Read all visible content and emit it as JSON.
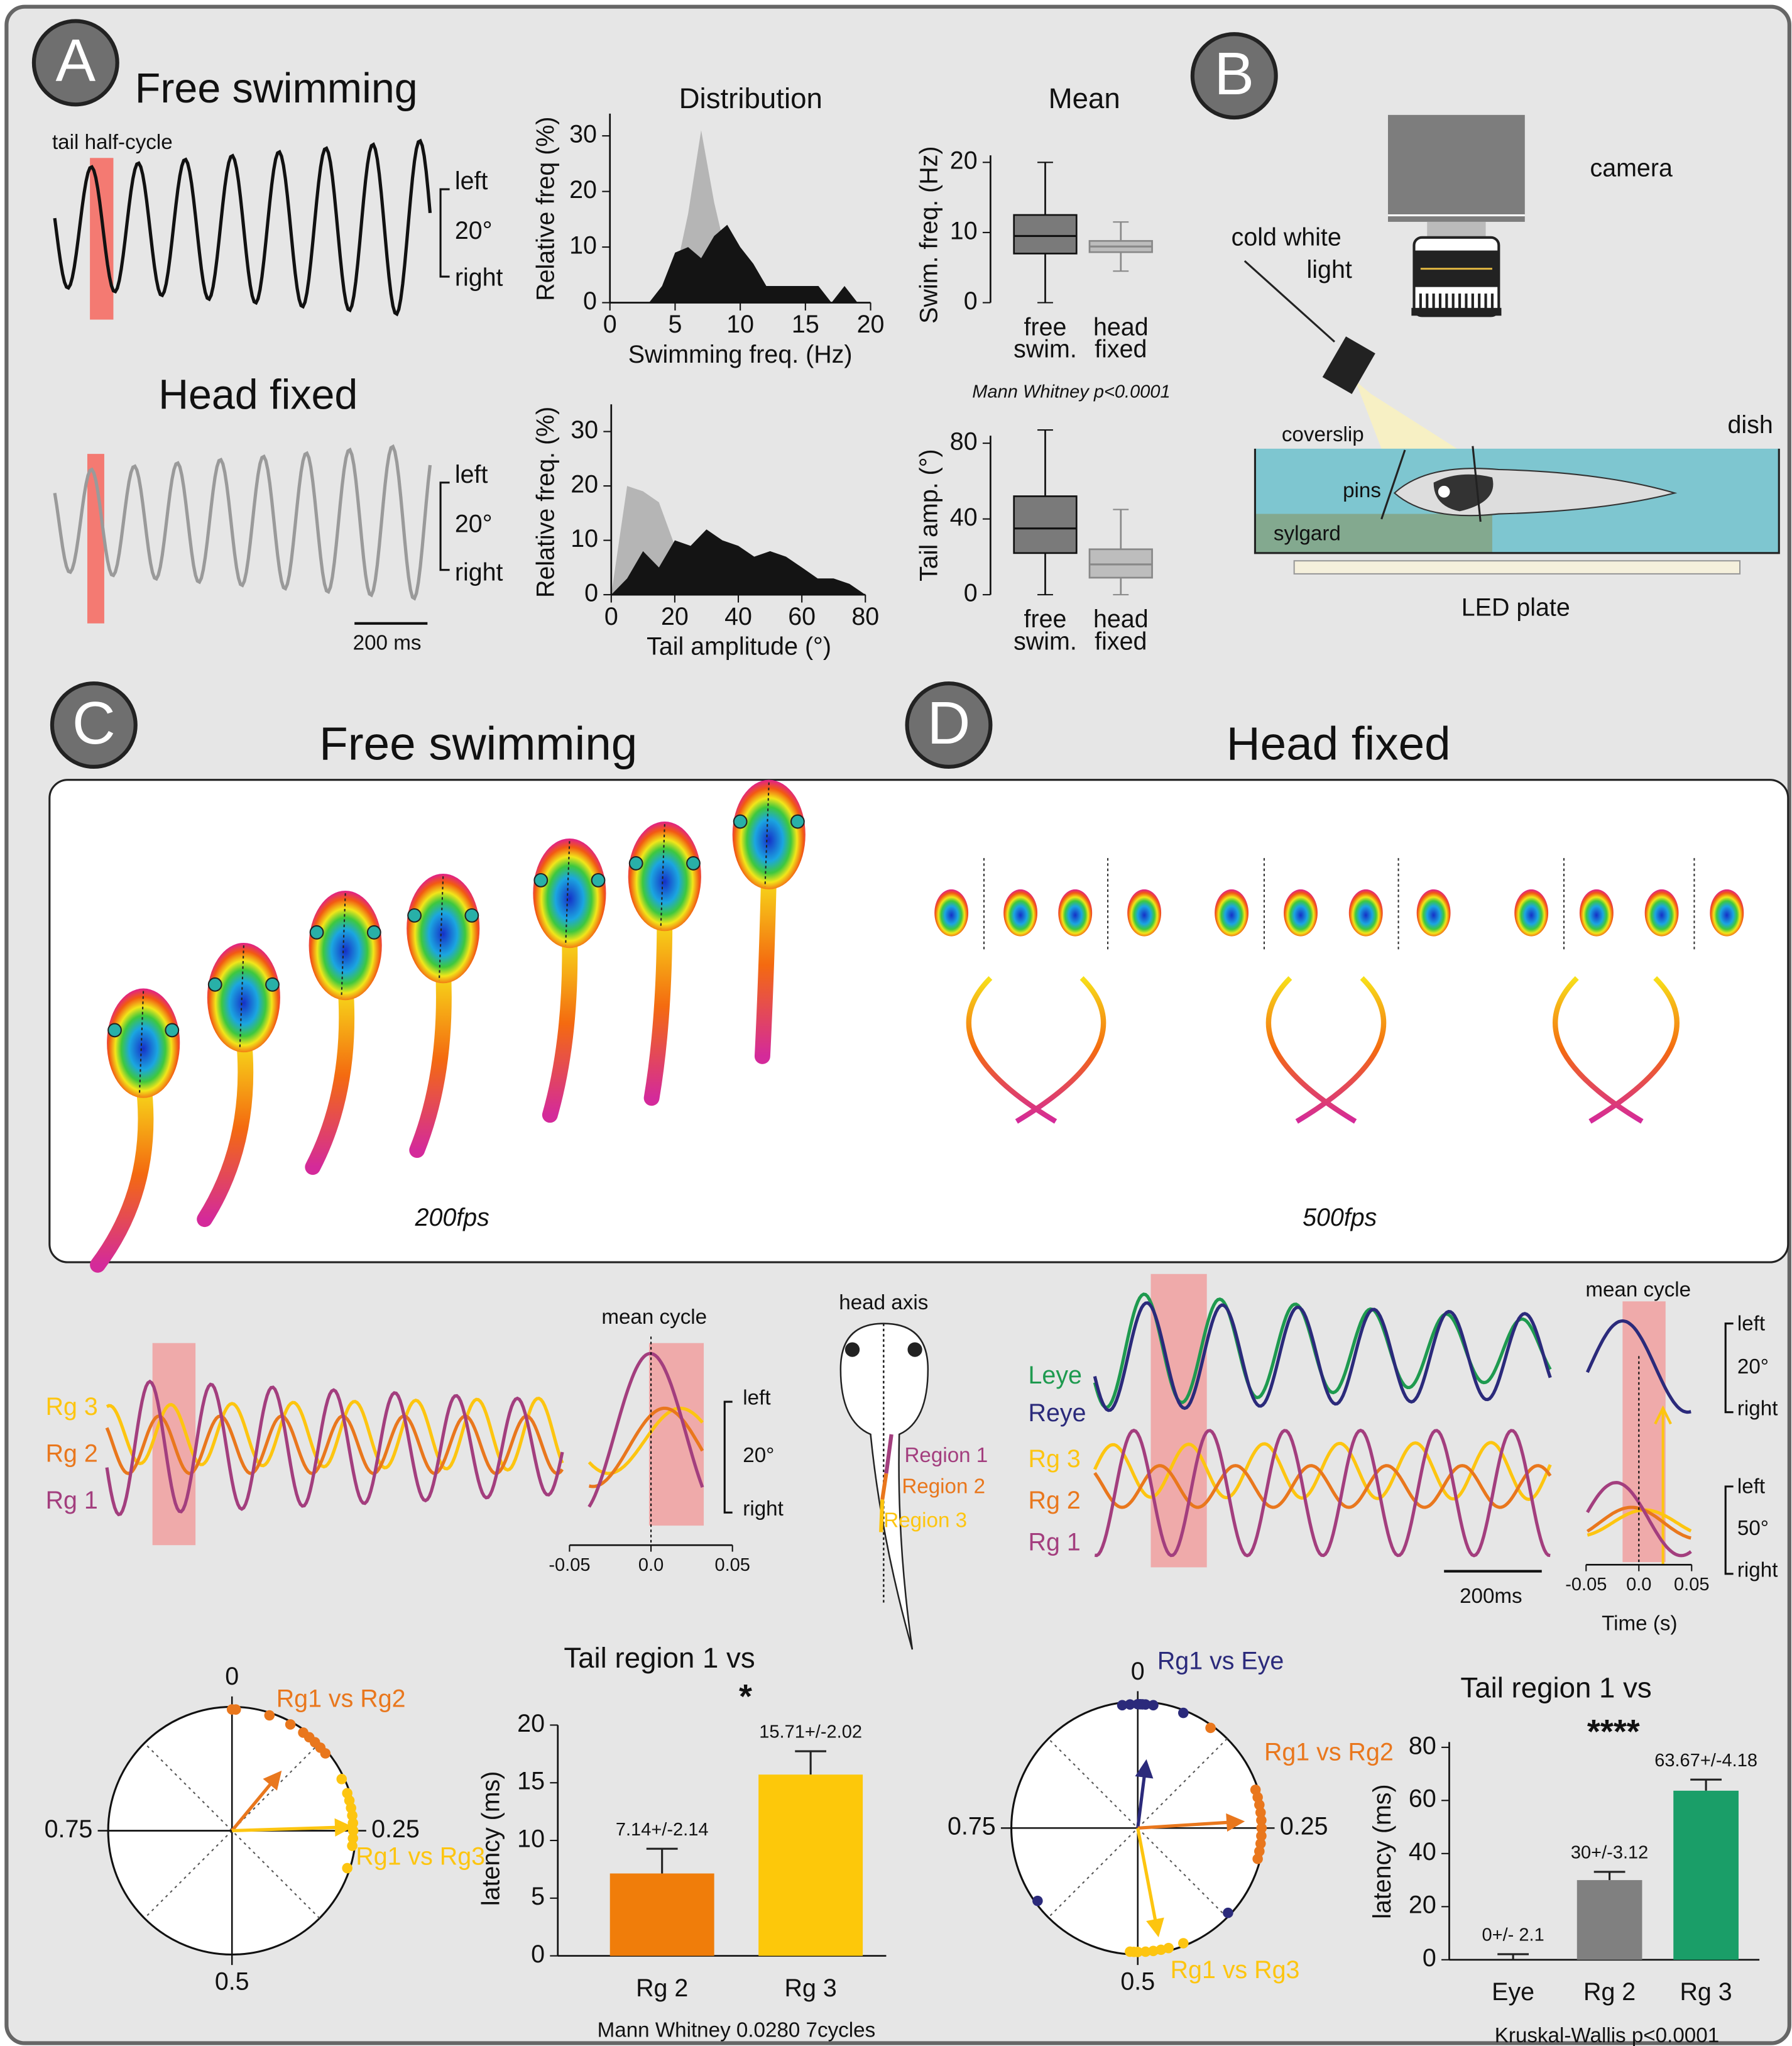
{
  "panel_labels": [
    "A",
    "B",
    "C",
    "D"
  ],
  "panel_a": {
    "free_title": "Free swimming",
    "half_cycle": "tail half-cycle",
    "head_title": "Head fixed",
    "free_scale": [
      "left",
      "20°",
      "right"
    ],
    "head_scale": [
      "left",
      "20°",
      "right"
    ],
    "time_scale": "200 ms"
  },
  "panel_b": {
    "camera": "camera",
    "light": [
      "cold white",
      "light"
    ],
    "coverslip": "coverslip",
    "dish": "dish",
    "pins": "pins",
    "sylgard": "sylgard",
    "plate": "LED plate"
  },
  "panel_c": {
    "title": "Free swimming",
    "fps": "200fps",
    "traces": [
      "Rg 3",
      "Rg 2",
      "Rg 1"
    ],
    "trace_colors": [
      "#fdc510",
      "#e9771d",
      "#a33e7e"
    ],
    "mean_cycle": {
      "title": "mean cycle",
      "scale": [
        "left",
        "20°",
        "right"
      ],
      "xlim": [
        -0.05,
        0.05
      ],
      "xticks": [
        -0.05,
        {
          "value": 0,
          "label": "0.0"
        },
        0.05
      ]
    },
    "head_axis": "head axis",
    "regions": [
      "Region 1",
      "Region 2",
      "Region 3"
    ]
  },
  "panel_d": {
    "title": "Head fixed",
    "fps": "500fps",
    "eyes": [
      "Leye",
      "Reye"
    ],
    "eye_colors": [
      "#1e9a4f",
      "#2b2a7b"
    ],
    "traces": [
      "Rg 3",
      "Rg 2",
      "Rg 1"
    ],
    "trace_colors": [
      "#fdc510",
      "#e9771d",
      "#a33e7e"
    ],
    "time_scale": "200ms",
    "mean_cycle": {
      "title": "mean cycle",
      "eye_scale": [
        "left",
        "20°",
        "right"
      ],
      "tail_scale": [
        "left",
        "50°",
        "right"
      ],
      "xlim": [
        -0.05,
        0.05
      ],
      "xticks": [
        -0.05,
        {
          "value": 0,
          "label": "0.0"
        },
        0.05
      ],
      "xlabel": "Time (s)"
    }
  },
  "chart_data": [
    {
      "type": "area",
      "title": "Distribution",
      "x": [
        2,
        3,
        4,
        5,
        6,
        7,
        8,
        9,
        10,
        11,
        12,
        13,
        14,
        15,
        16,
        17,
        18,
        19,
        20
      ],
      "series": [
        {
          "color": "#b5b5b5",
          "values": [
            0,
            0,
            0,
            5,
            16,
            31,
            18,
            8,
            3,
            0,
            0,
            0,
            0,
            0,
            0,
            0,
            0,
            0,
            0
          ]
        },
        {
          "color": "#141414",
          "values": [
            0,
            0,
            3,
            9,
            10,
            8,
            12,
            14,
            10,
            7,
            3,
            3,
            3,
            3,
            3,
            0,
            3,
            0,
            0
          ]
        }
      ],
      "xlim": [
        0,
        20
      ],
      "ylim": [
        0,
        34
      ],
      "xticks": [
        0,
        5,
        10,
        15,
        20
      ],
      "yticks": [
        0,
        10,
        20,
        30
      ],
      "xlabel": "Swimming freq. (Hz)",
      "ylabel": "Relative freq (%)"
    },
    {
      "type": "area",
      "x": [
        0,
        5,
        10,
        15,
        20,
        25,
        30,
        35,
        40,
        45,
        50,
        55,
        60,
        65,
        70,
        75,
        80
      ],
      "series": [
        {
          "color": "#b5b5b5",
          "values": [
            0,
            20,
            19,
            17,
            9,
            5,
            2,
            0,
            0,
            0,
            0,
            0,
            0,
            0,
            0,
            0,
            0
          ]
        },
        {
          "color": "#141414",
          "values": [
            0,
            3,
            8,
            5,
            10,
            9,
            12,
            10,
            9,
            7,
            8,
            7,
            5,
            3,
            3,
            2,
            0
          ]
        }
      ],
      "xlim": [
        0,
        80
      ],
      "ylim": [
        0,
        35
      ],
      "xticks": [
        0,
        20,
        40,
        60,
        80
      ],
      "yticks": [
        0,
        10,
        20,
        30
      ],
      "xlabel": "Tail amplitude (°)",
      "ylabel": "Relative freq. (%)"
    },
    {
      "type": "box",
      "title": "Mean",
      "categories": [
        [
          "free",
          "swim."
        ],
        [
          "head",
          "fixed"
        ]
      ],
      "colors": [
        "#7a7a7a",
        "#bdbdbd"
      ],
      "boxes": [
        {
          "min": 0,
          "q1": 7,
          "median": 9.5,
          "q3": 12.5,
          "max": 20
        },
        {
          "min": 4.5,
          "q1": 7.2,
          "median": 8,
          "q3": 8.8,
          "max": 11.5
        }
      ],
      "ylim": [
        0,
        21
      ],
      "yticks": [
        0,
        10,
        20
      ],
      "ylabel": "Swim. freq. (Hz)"
    },
    {
      "type": "box",
      "categories": [
        [
          "free",
          "swim."
        ],
        [
          "head",
          "fixed"
        ]
      ],
      "colors": [
        "#7a7a7a",
        "#bdbdbd"
      ],
      "boxes": [
        {
          "min": 0,
          "q1": 22,
          "median": 35,
          "q3": 52,
          "max": 87
        },
        {
          "min": 0,
          "q1": 9,
          "median": 16,
          "q3": 24,
          "max": 45
        }
      ],
      "ylim": [
        0,
        84
      ],
      "yticks": [
        0,
        40,
        80
      ],
      "ylabel": "Tail amp. (°)",
      "annotation": "Mann Whitney p<0.0001"
    },
    {
      "type": "polar",
      "ticks": [
        0,
        0.25,
        0.5,
        0.75
      ],
      "series": [
        {
          "name": "Rg1 vs Rg2",
          "color": "#e9771d",
          "values": [
            0,
            0.005,
            0.05,
            0.08,
            0.1,
            0.11,
            0.12,
            0.13,
            0.14
          ],
          "mean": 0.11,
          "length": 0.6
        },
        {
          "name": "Rg1 vs Rg3",
          "color": "#fdc510",
          "values": [
            0.18,
            0.2,
            0.21,
            0.22,
            0.23,
            0.24,
            0.25,
            0.26,
            0.27,
            0.3
          ],
          "mean": 0.245,
          "length": 0.95
        }
      ]
    },
    {
      "type": "bar",
      "title": "Tail region 1 vs",
      "categories": [
        "Rg 2",
        "Rg 3"
      ],
      "values": [
        7.14,
        15.71
      ],
      "errors": [
        2.14,
        2.02
      ],
      "value_labels": [
        "7.14+/-2.14",
        "15.71+/-2.02"
      ],
      "colors": [
        "#f07d0a",
        "#fdc80a"
      ],
      "ylim": [
        0,
        20
      ],
      "yticks": [
        0,
        5,
        10,
        15,
        20
      ],
      "ylabel": "latency (ms)",
      "annotation": "*",
      "note": "Mann Whitney 0.0280 7cycles"
    },
    {
      "type": "polar",
      "ticks": [
        0,
        0.25,
        0.5,
        0.75
      ],
      "series": [
        {
          "name": "Rg1 vs Eye",
          "color": "#2b2a7b",
          "values": [
            0.98,
            0.99,
            0,
            0.003,
            0.006,
            0.01,
            0.02,
            0.06,
            0.37,
            0.65
          ],
          "mean": 0.02,
          "length": 0.52
        },
        {
          "name": "Rg1 vs Rg2",
          "color": "#e9771d",
          "values": [
            0.1,
            0.2,
            0.21,
            0.22,
            0.23,
            0.24,
            0.25,
            0.26,
            0.27,
            0.28,
            0.29
          ],
          "mean": 0.24,
          "length": 0.82
        },
        {
          "name": "Rg1 vs Rg3",
          "color": "#fdc510",
          "values": [
            0.44,
            0.46,
            0.47,
            0.48,
            0.49,
            0.5,
            0.505,
            0.51
          ],
          "mean": 0.47,
          "length": 0.85
        }
      ]
    },
    {
      "type": "bar",
      "title": "Tail region 1 vs",
      "categories": [
        "Eye",
        "Rg 2",
        "Rg 3"
      ],
      "values": [
        0,
        30,
        63.67
      ],
      "errors": [
        2.1,
        3.12,
        4.18
      ],
      "value_labels": [
        "0+/- 2.1",
        "30+/-3.12",
        "63.67+/-4.18"
      ],
      "colors": [
        "#4d4d4d",
        "#808080",
        "#1a9e68"
      ],
      "ylim": [
        0,
        82
      ],
      "yticks": [
        0,
        20,
        40,
        60,
        80
      ],
      "ylabel": "latency (ms)",
      "annotation": "****",
      "note": "Kruskal-Wallis p<0.0001"
    }
  ]
}
